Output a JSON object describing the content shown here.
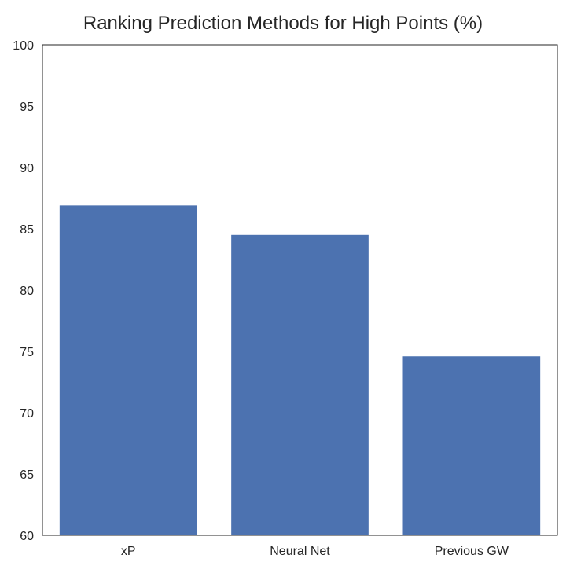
{
  "chart_data": {
    "type": "bar",
    "title": "Ranking Prediction Methods for High Points (%)",
    "xlabel": "",
    "ylabel": "",
    "categories": [
      "xP",
      "Neural Net",
      "Previous GW"
    ],
    "values": [
      86.9,
      84.5,
      74.6
    ],
    "ylim": [
      60,
      100
    ],
    "yticks": [
      60,
      65,
      70,
      75,
      80,
      85,
      90,
      95,
      100
    ],
    "grid": false,
    "legend": "none",
    "bar_color": "#4c72b0",
    "axis_color": "#262626"
  }
}
